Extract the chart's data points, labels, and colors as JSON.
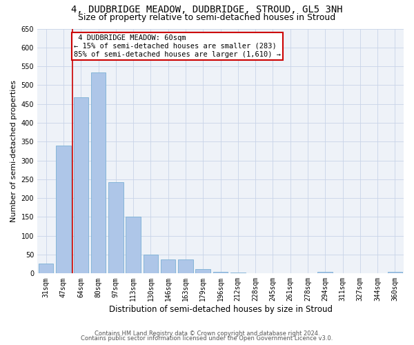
{
  "title": "4, DUDBRIDGE MEADOW, DUDBRIDGE, STROUD, GL5 3NH",
  "subtitle": "Size of property relative to semi-detached houses in Stroud",
  "xlabel": "Distribution of semi-detached houses by size in Stroud",
  "ylabel": "Number of semi-detached properties",
  "categories": [
    "31sqm",
    "47sqm",
    "64sqm",
    "80sqm",
    "97sqm",
    "113sqm",
    "130sqm",
    "146sqm",
    "163sqm",
    "179sqm",
    "196sqm",
    "212sqm",
    "228sqm",
    "245sqm",
    "261sqm",
    "278sqm",
    "294sqm",
    "311sqm",
    "327sqm",
    "344sqm",
    "360sqm"
  ],
  "values": [
    27,
    340,
    468,
    533,
    243,
    150,
    50,
    37,
    37,
    12,
    5,
    3,
    1,
    1,
    0,
    0,
    5,
    0,
    0,
    0,
    4
  ],
  "bar_color": "#aec6e8",
  "bar_edge_color": "#7aafd4",
  "property_sqm": 60,
  "property_label": "4 DUDBRIDGE MEADOW: 60sqm",
  "pct_smaller": 15,
  "n_smaller": 283,
  "pct_larger": 85,
  "n_larger": 1610,
  "annotation_box_color": "#cc0000",
  "vline_color": "#cc0000",
  "grid_color": "#c8d4e8",
  "background_color": "#eef2f8",
  "footer_line1": "Contains HM Land Registry data © Crown copyright and database right 2024.",
  "footer_line2": "Contains public sector information licensed under the Open Government Licence v3.0.",
  "ylim": [
    0,
    650
  ],
  "title_fontsize": 10,
  "subtitle_fontsize": 9,
  "tick_fontsize": 7,
  "ylabel_fontsize": 8,
  "xlabel_fontsize": 8.5,
  "footer_fontsize": 6,
  "annot_fontsize": 7.5
}
